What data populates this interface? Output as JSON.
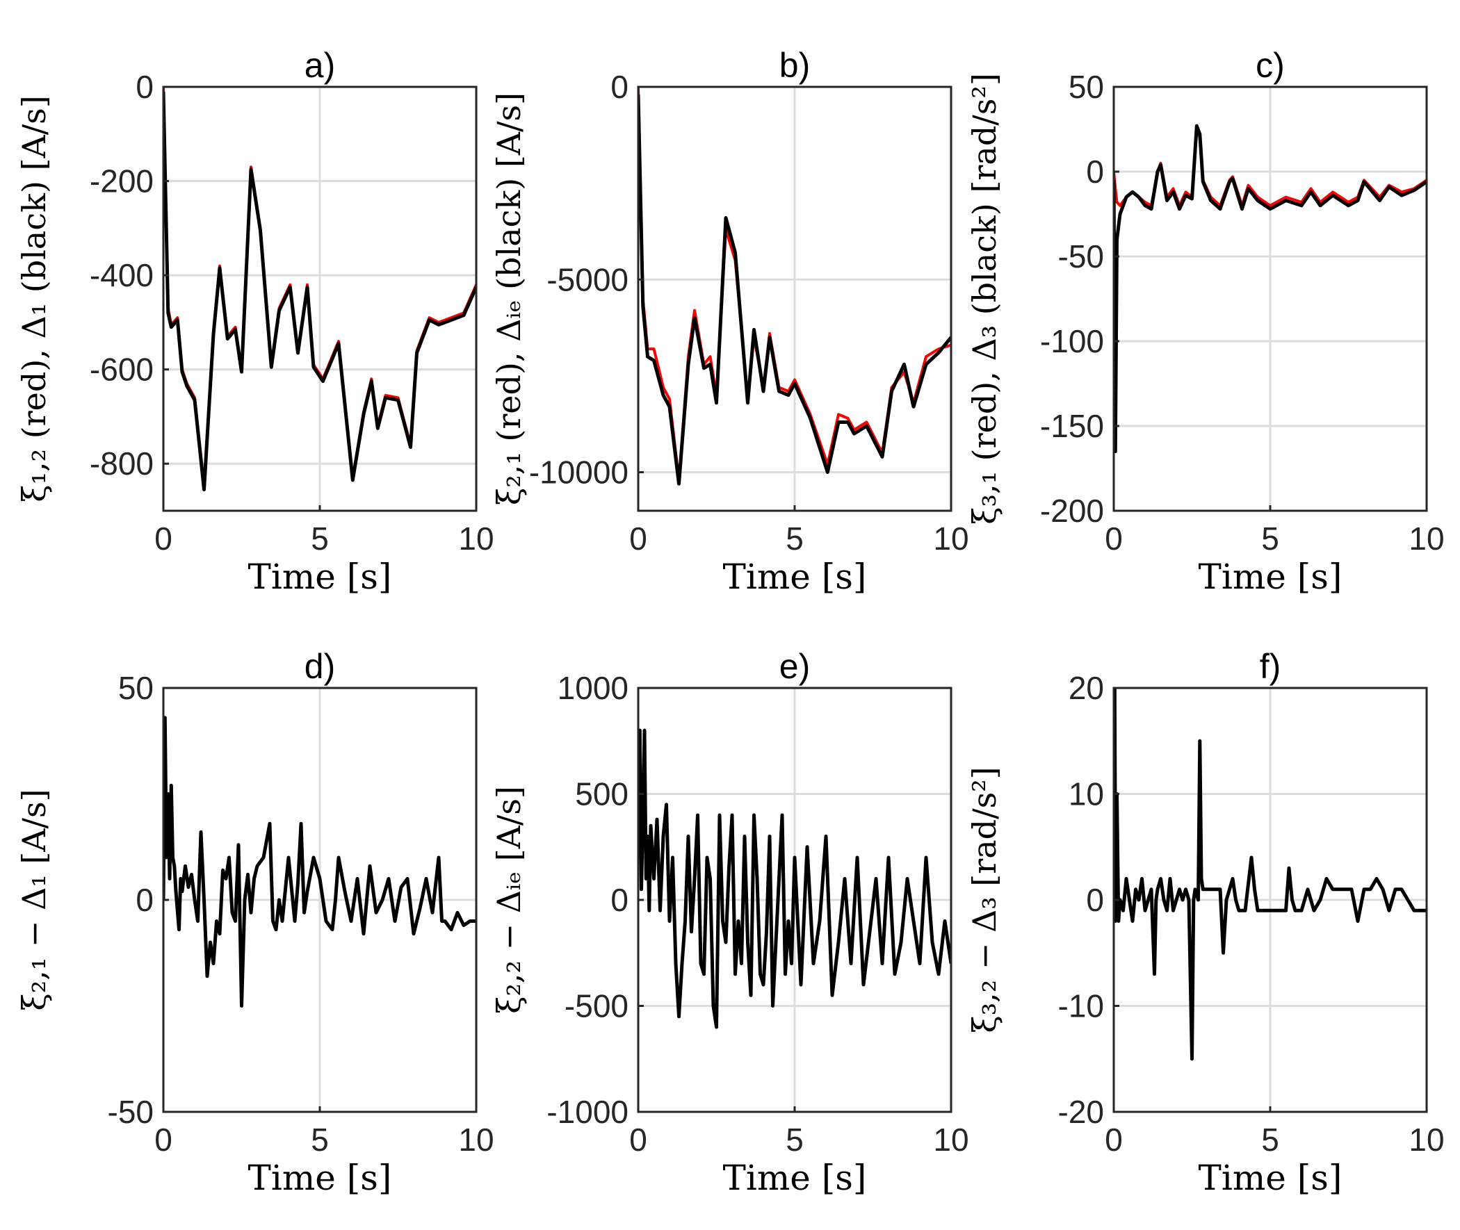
{
  "colors": {
    "red": "#ff0000",
    "black": "#000000",
    "grid": "#dcdcdc",
    "axis": "#262626"
  },
  "chart_data": [
    {
      "type": "line",
      "title": "a)",
      "xlabel": "Time [s]",
      "ylabel": "ξ₁,₂ (red), Δ₁ (black) [A/s]",
      "xlim": [
        0,
        10
      ],
      "ylim": [
        -900,
        0
      ],
      "xticks": [
        0,
        5,
        10
      ],
      "yticks": [
        0,
        -200,
        -400,
        -600,
        -800
      ],
      "grid": true,
      "series": [
        {
          "color": "red",
          "x": [
            0,
            0.15,
            0.25,
            0.45,
            0.6,
            0.75,
            1.0,
            1.3,
            1.6,
            1.8,
            2.05,
            2.3,
            2.5,
            2.8,
            3.1,
            3.45,
            3.7,
            4.05,
            4.3,
            4.6,
            4.8,
            5.1,
            5.6,
            6.05,
            6.4,
            6.65,
            6.85,
            7.1,
            7.5,
            7.9,
            8.1,
            8.5,
            8.8,
            9.2,
            9.6,
            10.0
          ],
          "y": [
            0,
            -470,
            -505,
            -490,
            -600,
            -630,
            -660,
            -845,
            -520,
            -380,
            -530,
            -510,
            -600,
            -170,
            -300,
            -590,
            -470,
            -420,
            -560,
            -420,
            -590,
            -620,
            -540,
            -830,
            -690,
            -620,
            -720,
            -655,
            -660,
            -760,
            -560,
            -490,
            -500,
            -490,
            -480,
            -420
          ]
        },
        {
          "color": "black",
          "x": [
            0,
            0.15,
            0.25,
            0.45,
            0.6,
            0.75,
            1.0,
            1.3,
            1.6,
            1.8,
            2.05,
            2.3,
            2.5,
            2.8,
            3.1,
            3.45,
            3.7,
            4.05,
            4.3,
            4.6,
            4.8,
            5.1,
            5.6,
            6.05,
            6.4,
            6.65,
            6.85,
            7.1,
            7.5,
            7.9,
            8.1,
            8.5,
            8.8,
            9.2,
            9.6,
            10.0
          ],
          "y": [
            -10,
            -480,
            -510,
            -495,
            -605,
            -635,
            -665,
            -855,
            -525,
            -385,
            -535,
            -515,
            -605,
            -175,
            -305,
            -595,
            -475,
            -425,
            -565,
            -425,
            -595,
            -625,
            -545,
            -835,
            -695,
            -625,
            -725,
            -660,
            -665,
            -765,
            -565,
            -495,
            -505,
            -495,
            -485,
            -425
          ]
        }
      ]
    },
    {
      "type": "line",
      "title": "b)",
      "xlabel": "Time [s]",
      "ylabel": "ξ₂,₁ (red), Δᵢₑ (black) [A/s]",
      "xlim": [
        0,
        10
      ],
      "ylim": [
        -11000,
        0
      ],
      "xticks": [
        0,
        5,
        10
      ],
      "yticks": [
        0,
        -5000,
        -10000
      ],
      "grid": true,
      "series": [
        {
          "color": "red",
          "x": [
            0,
            0.15,
            0.3,
            0.5,
            0.8,
            1.0,
            1.3,
            1.6,
            1.8,
            2.1,
            2.3,
            2.5,
            2.8,
            3.1,
            3.5,
            3.7,
            4.0,
            4.2,
            4.5,
            4.8,
            5.0,
            5.5,
            6.05,
            6.4,
            6.7,
            6.9,
            7.3,
            7.8,
            8.1,
            8.5,
            8.8,
            9.2,
            9.6,
            10.0
          ],
          "y": [
            0,
            -5500,
            -6800,
            -6800,
            -7800,
            -8100,
            -10200,
            -7000,
            -5800,
            -7200,
            -7000,
            -8000,
            -3700,
            -4500,
            -8100,
            -6500,
            -7800,
            -6400,
            -7800,
            -7900,
            -7600,
            -8500,
            -9800,
            -8500,
            -8600,
            -8900,
            -8700,
            -9500,
            -7800,
            -7400,
            -8200,
            -7000,
            -6800,
            -6700
          ]
        },
        {
          "color": "black",
          "x": [
            0,
            0.15,
            0.3,
            0.5,
            0.8,
            1.0,
            1.3,
            1.6,
            1.8,
            2.1,
            2.3,
            2.5,
            2.8,
            3.1,
            3.5,
            3.7,
            4.0,
            4.2,
            4.5,
            4.8,
            5.0,
            5.5,
            6.05,
            6.4,
            6.7,
            6.9,
            7.3,
            7.8,
            8.1,
            8.5,
            8.8,
            9.2,
            9.6,
            10.0
          ],
          "y": [
            -200,
            -5700,
            -7000,
            -7100,
            -8000,
            -8300,
            -10300,
            -7200,
            -6000,
            -7300,
            -7200,
            -8200,
            -3400,
            -4300,
            -8200,
            -6300,
            -7900,
            -6500,
            -7900,
            -8000,
            -7700,
            -8600,
            -10000,
            -8700,
            -8700,
            -9000,
            -8800,
            -9600,
            -7900,
            -7200,
            -8300,
            -7200,
            -6900,
            -6500
          ]
        }
      ]
    },
    {
      "type": "line",
      "title": "c)",
      "xlabel": "Time [s]",
      "ylabel": "ξ₃,₁ (red), Δ₃ (black) [rad/s²]",
      "xlim": [
        0,
        10
      ],
      "ylim": [
        -200,
        50
      ],
      "xticks": [
        0,
        5,
        10
      ],
      "yticks": [
        50,
        0,
        -50,
        -100,
        -150,
        -200
      ],
      "grid": true,
      "series": [
        {
          "color": "red",
          "x": [
            0,
            0.05,
            0.1,
            0.2,
            0.4,
            0.6,
            0.8,
            1.0,
            1.2,
            1.4,
            1.5,
            1.7,
            1.9,
            2.1,
            2.3,
            2.5,
            2.65,
            2.75,
            2.85,
            3.1,
            3.4,
            3.7,
            3.8,
            4.1,
            4.3,
            4.6,
            5.0,
            5.5,
            6.0,
            6.3,
            6.6,
            7.0,
            7.5,
            7.8,
            8.0,
            8.5,
            8.8,
            9.2,
            9.6,
            10.0
          ],
          "y": [
            0,
            -10,
            -18,
            -20,
            -15,
            -12,
            -15,
            -18,
            -20,
            0,
            5,
            -15,
            -10,
            -20,
            -12,
            -15,
            25,
            20,
            -5,
            -15,
            -20,
            -5,
            -3,
            -20,
            -8,
            -15,
            -20,
            -15,
            -18,
            -10,
            -18,
            -12,
            -18,
            -15,
            -5,
            -15,
            -8,
            -12,
            -10,
            -5
          ]
        },
        {
          "color": "black",
          "x": [
            0,
            0.05,
            0.1,
            0.2,
            0.4,
            0.6,
            0.8,
            1.0,
            1.2,
            1.4,
            1.5,
            1.7,
            1.9,
            2.1,
            2.3,
            2.5,
            2.65,
            2.75,
            2.85,
            3.1,
            3.4,
            3.7,
            3.8,
            4.1,
            4.3,
            4.6,
            5.0,
            5.5,
            6.0,
            6.3,
            6.6,
            7.0,
            7.5,
            7.8,
            8.0,
            8.5,
            8.8,
            9.2,
            9.6,
            10.0
          ],
          "y": [
            -5,
            -165,
            -40,
            -25,
            -15,
            -12,
            -15,
            -20,
            -22,
            0,
            4,
            -17,
            -12,
            -22,
            -14,
            -16,
            27,
            22,
            -6,
            -17,
            -22,
            -6,
            -4,
            -22,
            -10,
            -17,
            -22,
            -17,
            -20,
            -12,
            -20,
            -14,
            -20,
            -17,
            -6,
            -17,
            -9,
            -14,
            -11,
            -6
          ]
        }
      ]
    },
    {
      "type": "line",
      "title": "d)",
      "xlabel": "Time [s]",
      "ylabel": "ξ₂,₁ − Δ₁ [A/s]",
      "xlim": [
        0,
        10
      ],
      "ylim": [
        -50,
        50
      ],
      "xticks": [
        0,
        5,
        10
      ],
      "yticks": [
        50,
        0,
        -50
      ],
      "grid": true,
      "series": [
        {
          "color": "black",
          "x": [
            0,
            0.05,
            0.1,
            0.15,
            0.2,
            0.25,
            0.3,
            0.35,
            0.4,
            0.5,
            0.55,
            0.6,
            0.7,
            0.8,
            0.9,
            1.0,
            1.1,
            1.2,
            1.3,
            1.4,
            1.5,
            1.6,
            1.7,
            1.8,
            1.9,
            2.0,
            2.1,
            2.2,
            2.3,
            2.4,
            2.5,
            2.6,
            2.7,
            2.8,
            2.9,
            3.0,
            3.2,
            3.4,
            3.5,
            3.6,
            3.7,
            3.8,
            4.0,
            4.2,
            4.3,
            4.4,
            4.5,
            4.6,
            4.8,
            5.0,
            5.2,
            5.4,
            5.5,
            5.6,
            5.8,
            6.0,
            6.2,
            6.4,
            6.6,
            6.8,
            7.0,
            7.2,
            7.4,
            7.6,
            7.8,
            8.0,
            8.2,
            8.4,
            8.6,
            8.8,
            8.9,
            9.0,
            9.2,
            9.4,
            9.6,
            9.8,
            10.0
          ],
          "y": [
            0,
            43,
            10,
            25,
            5,
            27,
            10,
            8,
            2,
            -7,
            5,
            2,
            8,
            3,
            6,
            0,
            -5,
            16,
            0,
            -18,
            -10,
            -15,
            -5,
            -8,
            7,
            5,
            10,
            -3,
            -5,
            13,
            -25,
            0,
            6,
            -3,
            5,
            8,
            10,
            18,
            -5,
            -7,
            0,
            -5,
            10,
            -5,
            4,
            18,
            -3,
            2,
            10,
            5,
            -5,
            -7,
            0,
            10,
            2,
            -5,
            5,
            -8,
            8,
            -3,
            0,
            5,
            -5,
            3,
            5,
            -8,
            -2,
            5,
            -3,
            10,
            -5,
            -5,
            -7,
            -3,
            -6,
            -5,
            -5
          ]
        }
      ]
    },
    {
      "type": "line",
      "title": "e)",
      "xlabel": "Time [s]",
      "ylabel": "ξ₂,₂ − Δᵢₑ [A/s]",
      "xlim": [
        0,
        10
      ],
      "ylim": [
        -1000,
        1000
      ],
      "xticks": [
        0,
        5,
        10
      ],
      "yticks": [
        1000,
        500,
        0,
        -500,
        -1000
      ],
      "grid": true,
      "series": [
        {
          "color": "black",
          "x": [
            0,
            0.05,
            0.1,
            0.15,
            0.2,
            0.25,
            0.3,
            0.35,
            0.4,
            0.5,
            0.6,
            0.7,
            0.8,
            0.9,
            1.0,
            1.1,
            1.2,
            1.3,
            1.4,
            1.5,
            1.6,
            1.7,
            1.8,
            1.9,
            2.0,
            2.1,
            2.2,
            2.3,
            2.4,
            2.5,
            2.6,
            2.7,
            2.8,
            2.9,
            3.0,
            3.1,
            3.2,
            3.3,
            3.4,
            3.5,
            3.6,
            3.7,
            3.8,
            3.9,
            4.0,
            4.1,
            4.2,
            4.3,
            4.4,
            4.5,
            4.6,
            4.7,
            4.8,
            4.9,
            5.0,
            5.2,
            5.4,
            5.6,
            5.8,
            6.0,
            6.2,
            6.4,
            6.6,
            6.8,
            7.0,
            7.2,
            7.4,
            7.6,
            7.8,
            8.0,
            8.2,
            8.4,
            8.6,
            8.8,
            9.0,
            9.2,
            9.4,
            9.6,
            9.8,
            10.0
          ],
          "y": [
            200,
            800,
            50,
            400,
            800,
            100,
            300,
            -50,
            350,
            100,
            380,
            -50,
            300,
            450,
            -100,
            200,
            -300,
            -550,
            -300,
            -100,
            300,
            -150,
            100,
            400,
            -300,
            -350,
            200,
            100,
            -500,
            -600,
            400,
            -100,
            -200,
            150,
            400,
            -350,
            -100,
            -300,
            300,
            -200,
            -450,
            400,
            100,
            -350,
            -400,
            -150,
            300,
            -500,
            -200,
            100,
            400,
            -350,
            -100,
            -300,
            200,
            -400,
            250,
            -300,
            -100,
            300,
            -450,
            -200,
            100,
            -300,
            200,
            -400,
            -150,
            100,
            -300,
            200,
            -350,
            -200,
            100,
            -100,
            -300,
            200,
            -200,
            -350,
            -100,
            -300
          ]
        }
      ]
    },
    {
      "type": "line",
      "title": "f)",
      "xlabel": "Time [s]",
      "ylabel": "ξ₃,₂ − Δ₃ [rad/s²]",
      "xlim": [
        0,
        10
      ],
      "ylim": [
        -20,
        20
      ],
      "xticks": [
        0,
        5,
        10
      ],
      "yticks": [
        20,
        10,
        0,
        -10,
        -20
      ],
      "grid": true,
      "series": [
        {
          "color": "black",
          "x": [
            0,
            0.03,
            0.06,
            0.1,
            0.15,
            0.2,
            0.3,
            0.4,
            0.5,
            0.6,
            0.7,
            0.8,
            0.9,
            1.0,
            1.1,
            1.2,
            1.3,
            1.35,
            1.4,
            1.5,
            1.6,
            1.7,
            1.8,
            1.9,
            2.0,
            2.1,
            2.2,
            2.3,
            2.4,
            2.5,
            2.55,
            2.6,
            2.7,
            2.75,
            2.8,
            2.85,
            2.9,
            3.0,
            3.2,
            3.4,
            3.5,
            3.6,
            3.7,
            3.8,
            3.9,
            4.0,
            4.2,
            4.4,
            4.5,
            4.6,
            4.8,
            5.0,
            5.5,
            5.6,
            5.7,
            5.8,
            6.0,
            6.2,
            6.4,
            6.6,
            6.8,
            7.0,
            7.2,
            7.4,
            7.6,
            7.8,
            8.0,
            8.2,
            8.4,
            8.6,
            8.8,
            9.0,
            9.2,
            9.4,
            9.6,
            9.8,
            10.0
          ],
          "y": [
            0,
            20,
            -2,
            10,
            -2,
            0,
            -1,
            2,
            0,
            -2,
            1,
            0,
            2,
            -1,
            0,
            1,
            -7,
            0,
            1,
            2,
            0,
            -1,
            2,
            -1,
            0,
            1,
            0,
            1,
            0,
            -15,
            0,
            1,
            0,
            15,
            2,
            1,
            1,
            1,
            1,
            1,
            -5,
            0,
            1,
            2,
            0,
            -1,
            -1,
            4,
            1,
            -1,
            -1,
            -1,
            -1,
            3,
            0,
            -1,
            -1,
            1,
            -1,
            0,
            2,
            1,
            1,
            1,
            1,
            -2,
            1,
            1,
            2,
            1,
            -1,
            1,
            1,
            0,
            -1,
            -1,
            -1
          ]
        }
      ]
    }
  ]
}
